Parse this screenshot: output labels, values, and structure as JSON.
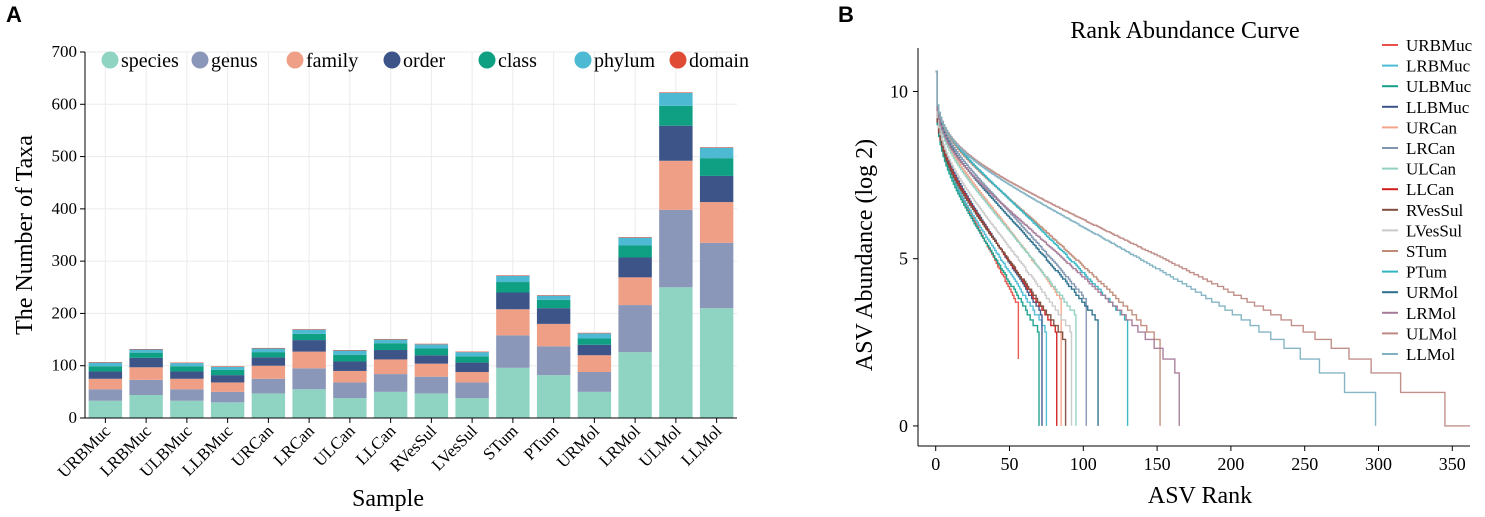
{
  "panel_a_label": "A",
  "panel_b_label": "B",
  "colors": {
    "species": "#8fd3c3",
    "genus": "#8b97b8",
    "family": "#ef9f86",
    "order": "#3c5488",
    "class": "#0f9f83",
    "phylum": "#4db9d2",
    "domain": "#df4b35",
    "grid": "#ebebeb",
    "axis": "#000000"
  },
  "chart_data": [
    {
      "type": "bar",
      "stacked": true,
      "title": "",
      "xlabel": "Sample",
      "ylabel": "The Number of Taxa",
      "ylim": [
        0,
        700
      ],
      "yticks": [
        0,
        100,
        200,
        300,
        400,
        500,
        600,
        700
      ],
      "grid": true,
      "legend_position": "top",
      "categories": [
        "URBMuc",
        "LRBMuc",
        "ULBMuc",
        "LLBMuc",
        "URCan",
        "LRCan",
        "ULCan",
        "LLCan",
        "RVesSul",
        "LVesSul",
        "STum",
        "PTum",
        "URMol",
        "LRMol",
        "ULMol",
        "LLMol"
      ],
      "series": [
        {
          "name": "species",
          "key": "species",
          "values": [
            33,
            44,
            33,
            30,
            47,
            55,
            38,
            50,
            47,
            38,
            96,
            82,
            50,
            126,
            250,
            210
          ]
        },
        {
          "name": "genus",
          "key": "genus",
          "values": [
            22,
            29,
            22,
            20,
            28,
            40,
            30,
            34,
            32,
            30,
            62,
            55,
            38,
            90,
            148,
            125
          ]
        },
        {
          "name": "family",
          "key": "family",
          "values": [
            20,
            24,
            20,
            18,
            25,
            32,
            22,
            28,
            25,
            20,
            50,
            43,
            32,
            53,
            94,
            78
          ]
        },
        {
          "name": "order",
          "key": "order",
          "values": [
            14,
            18,
            14,
            14,
            16,
            22,
            18,
            18,
            16,
            18,
            32,
            30,
            20,
            38,
            67,
            50
          ]
        },
        {
          "name": "class",
          "key": "class",
          "values": [
            10,
            10,
            10,
            10,
            10,
            12,
            13,
            13,
            13,
            12,
            20,
            16,
            12,
            23,
            38,
            34
          ]
        },
        {
          "name": "phylum",
          "key": "phylum",
          "values": [
            7,
            6,
            6,
            6,
            7,
            8,
            8,
            7,
            8,
            8,
            12,
            8,
            10,
            15,
            25,
            20
          ]
        },
        {
          "name": "domain",
          "key": "domain",
          "values": [
            1,
            1,
            1,
            1,
            1,
            1,
            1,
            1,
            1,
            1,
            1,
            1,
            1,
            1,
            1,
            1
          ]
        }
      ]
    },
    {
      "type": "line",
      "title": "Rank Abundance Curve",
      "xlabel": "ASV Rank",
      "ylabel": "ASV Abundance (log 2)",
      "xlim": [
        -12,
        362
      ],
      "ylim": [
        -0.6,
        11.3
      ],
      "xticks": [
        0,
        50,
        100,
        150,
        200,
        250,
        300,
        350
      ],
      "yticks": [
        0,
        5,
        10
      ],
      "legend_position": "right",
      "series": [
        {
          "name": "URBMuc",
          "color": "#e8524a",
          "max_rank": 56,
          "end_level": 2.0,
          "curvature": 1.5
        },
        {
          "name": "LRBMuc",
          "color": "#4dbcd6",
          "max_rank": 75,
          "end_level": 0.0,
          "curvature": 1.6
        },
        {
          "name": "ULBMuc",
          "color": "#16a08b",
          "max_rank": 70,
          "end_level": 0.0,
          "curvature": 1.6
        },
        {
          "name": "LLBMuc",
          "color": "#3c5488",
          "max_rank": 72,
          "end_level": 0.0,
          "curvature": 1.6
        },
        {
          "name": "URCan",
          "color": "#f4a58a",
          "max_rank": 85,
          "end_level": 0.0,
          "curvature": 1.7
        },
        {
          "name": "LRCan",
          "color": "#8094b0",
          "max_rank": 102,
          "end_level": 0.0,
          "curvature": 1.8
        },
        {
          "name": "ULCan",
          "color": "#91d1c2",
          "max_rank": 95,
          "end_level": 0.0,
          "curvature": 1.8
        },
        {
          "name": "LLCan",
          "color": "#d21e1e",
          "max_rank": 82,
          "end_level": 0.0,
          "curvature": 1.7
        },
        {
          "name": "RVesSul",
          "color": "#7e4d3e",
          "max_rank": 88,
          "end_level": 0.0,
          "curvature": 1.7
        },
        {
          "name": "LVesSul",
          "color": "#c9c9c9",
          "max_rank": 92,
          "end_level": 0.0,
          "curvature": 1.8
        },
        {
          "name": "STum",
          "color": "#c08a77",
          "max_rank": 152,
          "end_level": 0.0,
          "curvature": 2.4
        },
        {
          "name": "PTum",
          "color": "#2fb5c4",
          "max_rank": 130,
          "end_level": 0.0,
          "curvature": 2.2
        },
        {
          "name": "URMol",
          "color": "#2a6f8c",
          "max_rank": 110,
          "end_level": 0.0,
          "curvature": 2.0
        },
        {
          "name": "LRMol",
          "color": "#a67b99",
          "max_rank": 165,
          "end_level": 0.0,
          "curvature": 2.5
        },
        {
          "name": "ULMol",
          "color": "#bf8a85",
          "max_rank": 362,
          "end_level": 0.0,
          "curvature": 3.2
        },
        {
          "name": "LLMol",
          "color": "#80b1c2",
          "max_rank": 298,
          "end_level": 0.0,
          "curvature": 3.0
        }
      ]
    }
  ]
}
